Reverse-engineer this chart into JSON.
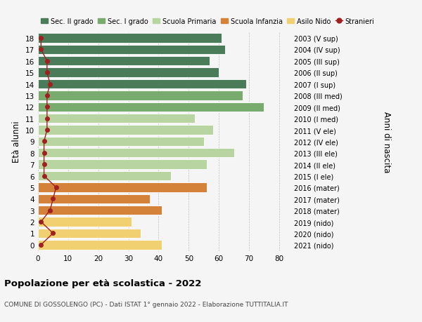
{
  "ages": [
    18,
    17,
    16,
    15,
    14,
    13,
    12,
    11,
    10,
    9,
    8,
    7,
    6,
    5,
    4,
    3,
    2,
    1,
    0
  ],
  "values": [
    61,
    62,
    57,
    60,
    69,
    68,
    75,
    52,
    58,
    55,
    65,
    56,
    44,
    56,
    37,
    41,
    31,
    34,
    41
  ],
  "stranieri": [
    1,
    1,
    3,
    3,
    4,
    3,
    3,
    3,
    3,
    2,
    2,
    2,
    2,
    6,
    5,
    4,
    1,
    5,
    1
  ],
  "bar_colors": [
    "#4a7c59",
    "#4a7c59",
    "#4a7c59",
    "#4a7c59",
    "#4a7c59",
    "#7aab6e",
    "#7aab6e",
    "#b8d4a0",
    "#b8d4a0",
    "#b8d4a0",
    "#b8d4a0",
    "#b8d4a0",
    "#b8d4a0",
    "#d4813a",
    "#d4813a",
    "#d4813a",
    "#f0d070",
    "#f0d070",
    "#f0d070"
  ],
  "right_labels": [
    "2003 (V sup)",
    "2004 (IV sup)",
    "2005 (III sup)",
    "2006 (II sup)",
    "2007 (I sup)",
    "2008 (III med)",
    "2009 (II med)",
    "2010 (I med)",
    "2011 (V ele)",
    "2012 (IV ele)",
    "2013 (III ele)",
    "2014 (II ele)",
    "2015 (I ele)",
    "2016 (mater)",
    "2017 (mater)",
    "2018 (mater)",
    "2019 (nido)",
    "2020 (nido)",
    "2021 (nido)"
  ],
  "legend_labels": [
    "Sec. II grado",
    "Sec. I grado",
    "Scuola Primaria",
    "Scuola Infanzia",
    "Asilo Nido",
    "Stranieri"
  ],
  "legend_colors": [
    "#4a7c59",
    "#7aab6e",
    "#b8d4a0",
    "#d4813a",
    "#f0d070",
    "#b22222"
  ],
  "ylabel_left": "Età alunni",
  "ylabel_right": "Anni di nascita",
  "title": "Popolazione per età scolastica - 2022",
  "subtitle": "COMUNE DI GOSSOLENGO (PC) - Dati ISTAT 1° gennaio 2022 - Elaborazione TUTTITALIA.IT",
  "xlim": [
    0,
    84
  ],
  "xticks": [
    0,
    10,
    20,
    30,
    40,
    50,
    60,
    70,
    80
  ],
  "ylim": [
    -0.55,
    18.55
  ],
  "bg_color": "#f5f5f5",
  "stranieri_color": "#a02020",
  "line_color": "#a02020"
}
